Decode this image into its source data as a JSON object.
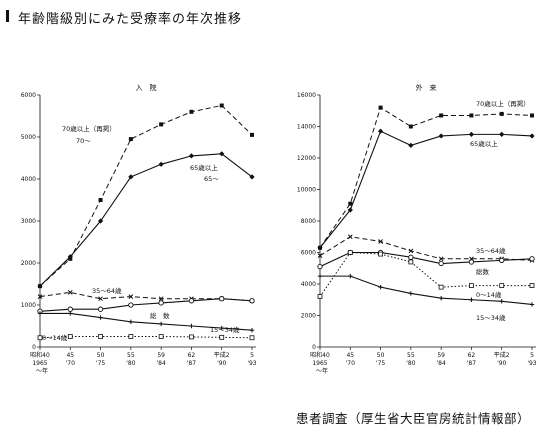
{
  "page": {
    "title": "年齢階級別にみた受療率の年次推移",
    "source": "患者調査（厚生省大臣官房統計情報部）"
  },
  "chart_data": [
    {
      "type": "line",
      "title": "入　院",
      "x_tick_top": [
        "昭和40",
        "45",
        "50",
        "55",
        "59",
        "62",
        "平成2",
        "5"
      ],
      "x_tick_bottom": [
        "1965",
        "'70",
        "'75",
        "'80",
        "'84",
        "'87",
        "'90",
        "'93"
      ],
      "x_axis_suffix": "年",
      "x": [
        1965,
        1970,
        1975,
        1980,
        1984,
        1987,
        1990,
        1993
      ],
      "ylim": [
        0,
        6000
      ],
      "y_ticks": [
        0,
        1000,
        2000,
        3000,
        4000,
        5000,
        6000
      ],
      "grid": false,
      "series": [
        {
          "name": "70歳以上（再掲）",
          "label_extra": "70～",
          "style": "dashed",
          "marker": "square",
          "values": [
            1450,
            2100,
            3500,
            4950,
            5300,
            5600,
            5750,
            5050
          ]
        },
        {
          "name": "65歳以上",
          "label_extra": "65～",
          "style": "solid",
          "marker": "diamond",
          "values": [
            1450,
            2150,
            3000,
            4050,
            4350,
            4550,
            4600,
            4050
          ]
        },
        {
          "name": "35～64歳",
          "style": "dashed",
          "marker": "x",
          "values": [
            1200,
            1300,
            1150,
            1200,
            1150,
            1150,
            1150,
            1100
          ]
        },
        {
          "name": "総　数",
          "style": "solid",
          "marker": "circle",
          "values": [
            850,
            900,
            900,
            1000,
            1050,
            1100,
            1150,
            1100
          ]
        },
        {
          "name": "15～34歳",
          "style": "solid",
          "marker": "cross",
          "values": [
            800,
            800,
            700,
            600,
            550,
            500,
            450,
            400
          ]
        },
        {
          "name": "0～14歳",
          "style": "dotted",
          "marker": "square-open",
          "values": [
            220,
            250,
            250,
            250,
            250,
            240,
            230,
            220
          ]
        }
      ]
    },
    {
      "type": "line",
      "title": "外　来",
      "x_tick_top": [
        "昭和40",
        "45",
        "50",
        "55",
        "59",
        "62",
        "平成2",
        "5"
      ],
      "x_tick_bottom": [
        "1965",
        "'70",
        "'75",
        "'80",
        "'84",
        "'87",
        "'90",
        "'93"
      ],
      "x_axis_suffix": "年",
      "x": [
        1965,
        1970,
        1975,
        1980,
        1984,
        1987,
        1990,
        1993
      ],
      "ylim": [
        0,
        16000
      ],
      "y_ticks": [
        0,
        2000,
        4000,
        6000,
        8000,
        10000,
        12000,
        14000,
        16000
      ],
      "grid": false,
      "series": [
        {
          "name": "70歳以上（再掲）",
          "style": "dashed",
          "marker": "square",
          "values": [
            6300,
            9100,
            15200,
            14000,
            14700,
            14700,
            14800,
            14700
          ]
        },
        {
          "name": "65歳以上",
          "style": "solid",
          "marker": "diamond",
          "values": [
            6300,
            8700,
            13700,
            12800,
            13400,
            13500,
            13500,
            13400
          ]
        },
        {
          "name": "35～64歳",
          "style": "dashed",
          "marker": "x",
          "values": [
            5800,
            7000,
            6700,
            6100,
            5600,
            5600,
            5600,
            5500
          ]
        },
        {
          "name": "総数",
          "style": "solid",
          "marker": "circle",
          "values": [
            5100,
            6000,
            6000,
            5700,
            5300,
            5400,
            5500,
            5600
          ]
        },
        {
          "name": "0～14歳",
          "style": "dotted",
          "marker": "square-open",
          "values": [
            3200,
            6000,
            5900,
            5400,
            3800,
            3900,
            3900,
            3900
          ]
        },
        {
          "name": "15～34歳",
          "style": "solid",
          "marker": "cross",
          "values": [
            4500,
            4500,
            3800,
            3400,
            3100,
            3000,
            2900,
            2700
          ]
        }
      ]
    }
  ]
}
